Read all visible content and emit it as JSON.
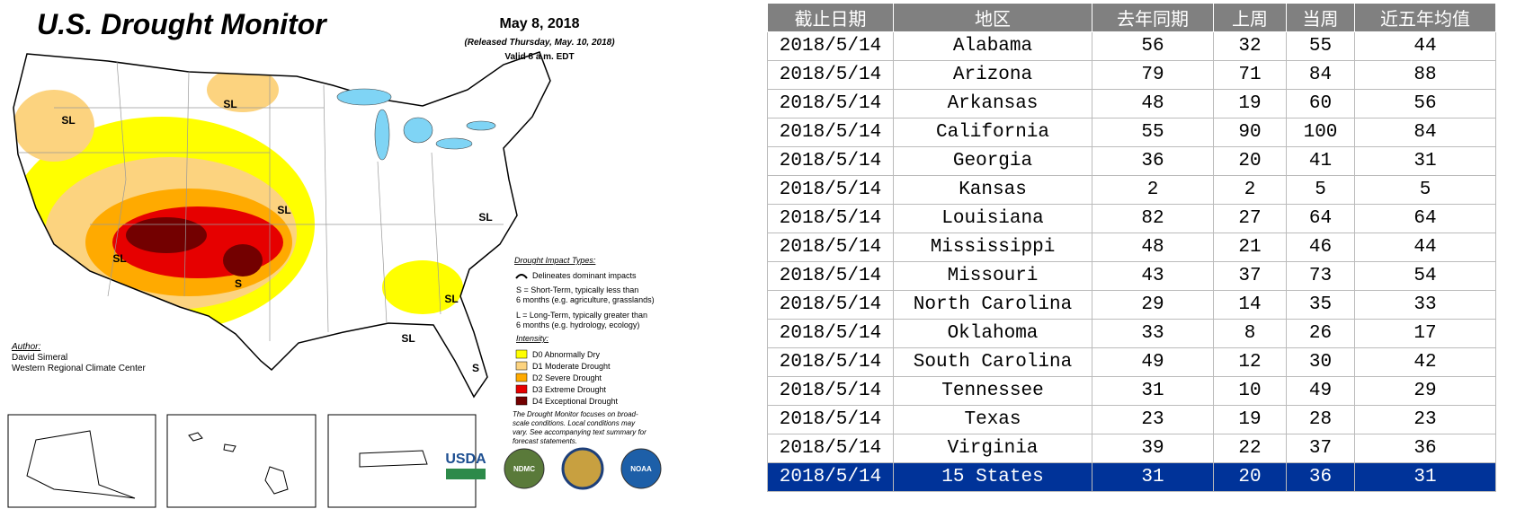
{
  "header": {
    "title": "U.S. Drought Monitor",
    "date": "May 8, 2018",
    "released": "(Released Thursday, May. 10, 2018)",
    "valid": "Valid 8 a.m. EDT"
  },
  "map_labels": [
    "SL",
    "SL",
    "SL",
    "SL",
    "SL",
    "SL",
    "SL",
    "S",
    "S"
  ],
  "legend": {
    "impact_title": "Drought Impact Types:",
    "impact_line": "Delineates dominant impacts",
    "short_term": [
      "S = Short-Term, typically less than",
      "6 months (e.g. agriculture, grasslands)"
    ],
    "long_term": [
      "L = Long-Term, typically greater than",
      "6 months (e.g. hydrology, ecology)"
    ],
    "intensity_title": "Intensity:",
    "items": [
      {
        "label": "D0 Abnormally Dry",
        "color": "#ffff00"
      },
      {
        "label": "D1 Moderate Drought",
        "color": "#fcd37f"
      },
      {
        "label": "D2 Severe Drought",
        "color": "#ffaa00"
      },
      {
        "label": "D3 Extreme Drought",
        "color": "#e60000"
      },
      {
        "label": "D4 Exceptional Drought",
        "color": "#730000"
      }
    ]
  },
  "author": {
    "label": "Author:",
    "name": "David Simeral",
    "org": "Western Regional Climate Center"
  },
  "note": [
    "The Drought Monitor focuses on broad-",
    "scale conditions. Local conditions may",
    "vary. See accompanying text summary for",
    "forecast statements."
  ],
  "logos": [
    "USDA",
    "NDMC",
    "NOAA"
  ],
  "table": {
    "header": [
      "截止日期",
      "地区",
      "去年同期",
      "上周",
      "当周",
      "近五年均值"
    ],
    "rows": [
      [
        "2018/5/14",
        "Alabama",
        56,
        32,
        55,
        44
      ],
      [
        "2018/5/14",
        "Arizona",
        79,
        71,
        84,
        88
      ],
      [
        "2018/5/14",
        "Arkansas",
        48,
        19,
        60,
        56
      ],
      [
        "2018/5/14",
        "California",
        55,
        90,
        100,
        84
      ],
      [
        "2018/5/14",
        "Georgia",
        36,
        20,
        41,
        31
      ],
      [
        "2018/5/14",
        "Kansas",
        2,
        2,
        5,
        5
      ],
      [
        "2018/5/14",
        "Louisiana",
        82,
        27,
        64,
        64
      ],
      [
        "2018/5/14",
        "Mississippi",
        48,
        21,
        46,
        44
      ],
      [
        "2018/5/14",
        "Missouri",
        43,
        37,
        73,
        54
      ],
      [
        "2018/5/14",
        "North Carolina",
        29,
        14,
        35,
        33
      ],
      [
        "2018/5/14",
        "Oklahoma",
        33,
        8,
        26,
        17
      ],
      [
        "2018/5/14",
        "South Carolina",
        49,
        12,
        30,
        42
      ],
      [
        "2018/5/14",
        "Tennessee",
        31,
        10,
        49,
        29
      ],
      [
        "2018/5/14",
        "Texas",
        23,
        19,
        28,
        23
      ],
      [
        "2018/5/14",
        "Virginia",
        39,
        22,
        37,
        36
      ],
      [
        "2018/5/14",
        "15 States",
        31,
        20,
        36,
        31
      ]
    ]
  }
}
